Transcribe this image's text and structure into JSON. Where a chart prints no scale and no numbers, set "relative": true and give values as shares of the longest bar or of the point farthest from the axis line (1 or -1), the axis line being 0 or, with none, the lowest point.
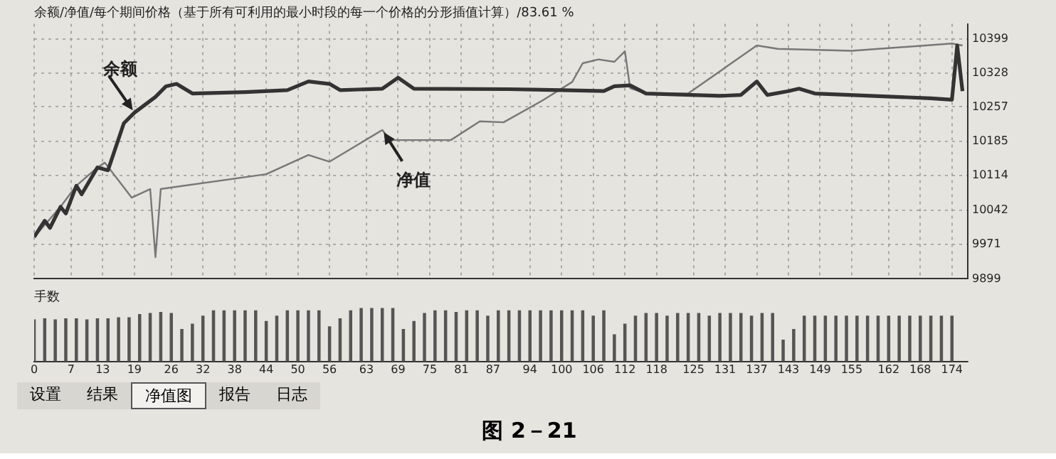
{
  "chart_data": [
    {
      "type": "line",
      "title": "余额/净值/每个期间价格（基于所有可利用的最小时段的每一个价格的分形插值计算）/83.61 %",
      "xlim": [
        0,
        177
      ],
      "xticks": [
        0,
        7,
        13,
        19,
        26,
        32,
        38,
        44,
        50,
        56,
        63,
        69,
        75,
        81,
        87,
        94,
        100,
        106,
        112,
        118,
        125,
        131,
        137,
        143,
        149,
        155,
        162,
        168,
        174
      ],
      "ylim": [
        9899,
        10430
      ],
      "yticks": [
        9899,
        9971,
        10042,
        10114,
        10185,
        10257,
        10328,
        10399
      ],
      "tick_labels": "y",
      "grid": true,
      "marker": "none",
      "annotations": [
        "图 2－21"
      ],
      "series": [
        {
          "name": "余额",
          "color": "#333333",
          "x": [
            0,
            2,
            3,
            5,
            6,
            8,
            9,
            12,
            14,
            17,
            19,
            23,
            25,
            27,
            30,
            40,
            48,
            52,
            56,
            58,
            66,
            69,
            72,
            90,
            100,
            108,
            110,
            113,
            116,
            130,
            134,
            137,
            139,
            143,
            145,
            148,
            170,
            174,
            175,
            176
          ],
          "values": [
            9986,
            10020,
            10005,
            10049,
            10035,
            10093,
            10075,
            10131,
            10125,
            10223,
            10245,
            10278,
            10300,
            10305,
            10285,
            10288,
            10292,
            10310,
            10305,
            10292,
            10295,
            10318,
            10295,
            10294,
            10292,
            10290,
            10300,
            10302,
            10285,
            10280,
            10282,
            10310,
            10282,
            10290,
            10295,
            10285,
            10275,
            10272,
            10385,
            10290
          ]
        },
        {
          "name": "净值",
          "color": "#777777",
          "x": [
            0,
            5,
            8,
            12,
            13.4,
            18.5,
            22,
            23,
            24,
            44,
            52,
            56,
            66,
            67.5,
            79,
            84.5,
            89,
            96,
            102,
            104,
            107,
            110,
            112,
            113,
            116,
            124,
            137,
            141,
            155,
            174,
            176
          ],
          "values": [
            9986,
            10049,
            10093,
            10131,
            10141,
            10068,
            10086,
            9944,
            10086,
            10117,
            10157,
            10143,
            10209,
            10188,
            10188,
            10227,
            10225,
            10268,
            10309,
            10348,
            10356,
            10351,
            10373,
            10296,
            10285,
            10285,
            10385,
            10378,
            10374,
            10389,
            10385
          ]
        }
      ]
    },
    {
      "type": "bar",
      "title": "手数",
      "relative": true,
      "xlim": [
        0,
        177
      ],
      "xticks": [
        0,
        7,
        13,
        19,
        26,
        32,
        38,
        44,
        50,
        56,
        63,
        69,
        75,
        81,
        87,
        94,
        100,
        106,
        112,
        118,
        125,
        131,
        137,
        143,
        149,
        155,
        162,
        168,
        174
      ],
      "tick_labels": "x",
      "color": "#555555",
      "annotations": [
        "设置",
        "结果",
        "净值图",
        "报告",
        "日志"
      ],
      "x": [
        0,
        2,
        4,
        6,
        8,
        10,
        12,
        14,
        16,
        18,
        20,
        22,
        24,
        26,
        28,
        30,
        32,
        34,
        36,
        38,
        40,
        42,
        44,
        46,
        48,
        50,
        52,
        54,
        56,
        58,
        60,
        62,
        64,
        66,
        68,
        70,
        72,
        74,
        76,
        78,
        80,
        82,
        84,
        86,
        88,
        90,
        92,
        94,
        96,
        98,
        100,
        102,
        104,
        106,
        108,
        110,
        112,
        114,
        116,
        118,
        120,
        122,
        124,
        126,
        128,
        130,
        132,
        134,
        136,
        138,
        140,
        142,
        144,
        146,
        148,
        150,
        152,
        154,
        156,
        158,
        160,
        162,
        164,
        166,
        168,
        170,
        172,
        174
      ],
      "values": [
        0.78,
        0.8,
        0.78,
        0.8,
        0.8,
        0.78,
        0.8,
        0.8,
        0.82,
        0.82,
        0.88,
        0.9,
        0.92,
        0.9,
        0.6,
        0.7,
        0.85,
        0.95,
        0.95,
        0.95,
        0.95,
        0.95,
        0.75,
        0.85,
        0.95,
        0.95,
        0.95,
        0.95,
        0.65,
        0.8,
        0.95,
        1,
        1,
        1,
        1,
        0.6,
        0.75,
        0.9,
        0.95,
        0.95,
        0.92,
        0.95,
        0.95,
        0.85,
        0.95,
        0.95,
        0.95,
        0.95,
        0.95,
        0.95,
        0.95,
        0.95,
        0.95,
        0.85,
        0.95,
        0.5,
        0.7,
        0.85,
        0.9,
        0.9,
        0.85,
        0.9,
        0.9,
        0.9,
        0.85,
        0.9,
        0.9,
        0.9,
        0.85,
        0.9,
        0.9,
        0.4,
        0.6,
        0.85,
        0.85,
        0.85,
        0.85,
        0.85,
        0.85,
        0.85,
        0.85,
        0.85,
        0.85,
        0.85,
        0.85,
        0.85,
        0.85,
        0.85
      ]
    }
  ]
}
